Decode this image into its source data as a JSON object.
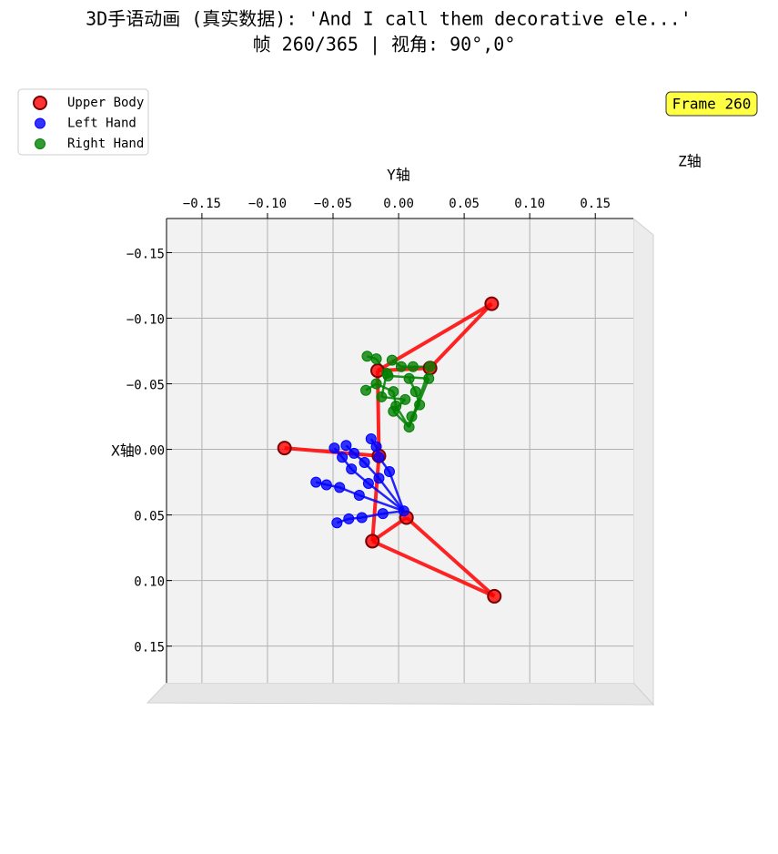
{
  "chart_data": {
    "type": "scatter",
    "title": "3D手语动画 (真实数据): 'And I call them decorative ele...'",
    "subtitle": "帧 260/365 | 视角: 90°,0°",
    "badge": "Frame 260",
    "xlabel": "Y轴",
    "ylabel": "X轴",
    "zlabel": "Z轴",
    "xlim": [
      -0.177,
      0.179
    ],
    "ylim": [
      -0.176,
      0.178
    ],
    "y_inverted": true,
    "grid": true,
    "legend": "upper left",
    "xticks": [
      {
        "value": -0.15,
        "label": "−0.15"
      },
      {
        "value": -0.1,
        "label": "−0.10"
      },
      {
        "value": -0.05,
        "label": "−0.05"
      },
      {
        "value": 0,
        "label": "0.00"
      },
      {
        "value": 0.05,
        "label": "0.05"
      },
      {
        "value": 0.1,
        "label": "0.10"
      },
      {
        "value": 0.15,
        "label": "0.15"
      }
    ],
    "yticks": [
      {
        "value": -0.15,
        "label": "−0.15"
      },
      {
        "value": -0.1,
        "label": "−0.10"
      },
      {
        "value": -0.05,
        "label": "−0.05"
      },
      {
        "value": 0,
        "label": "0.00"
      },
      {
        "value": 0.05,
        "label": "0.05"
      },
      {
        "value": 0.1,
        "label": "0.10"
      },
      {
        "value": 0.15,
        "label": "0.15"
      }
    ],
    "series": [
      {
        "name": "Upper Body",
        "color": "#ff0000",
        "x": [
          0.071,
          -0.016,
          0.024,
          -0.087,
          -0.015,
          0.006,
          -0.02,
          0.073
        ],
        "values": [
          -0.111,
          -0.06,
          -0.062,
          -0.001,
          0.005,
          0.052,
          0.07,
          0.112
        ]
      },
      {
        "name": "Left Hand",
        "color": "#0000ff",
        "x": [
          0.004,
          -0.012,
          -0.028,
          -0.038,
          -0.047,
          -0.03,
          -0.045,
          -0.055,
          -0.063,
          -0.023,
          -0.036,
          -0.043,
          -0.049,
          -0.015,
          -0.026,
          -0.034,
          -0.04,
          -0.007,
          -0.015,
          -0.017,
          -0.021
        ],
        "values": [
          0.047,
          0.049,
          0.052,
          0.053,
          0.056,
          0.035,
          0.029,
          0.027,
          0.025,
          0.026,
          0.015,
          0.006,
          -0.001,
          0.022,
          0.01,
          0.003,
          -0.003,
          0.017,
          0.006,
          -0.002,
          -0.008
        ]
      },
      {
        "name": "Right Hand",
        "color": "#008000",
        "x": [
          0.008,
          0.01,
          0.016,
          0.013,
          0.008,
          -0.002,
          -0.004,
          -0.017,
          -0.025,
          0.024,
          0.011,
          0.002,
          -0.005,
          0.023,
          -0.008,
          -0.017,
          -0.024,
          -0.004,
          0.005,
          -0.013,
          -0.009
        ],
        "values": [
          -0.017,
          -0.025,
          -0.034,
          -0.044,
          -0.054,
          -0.033,
          -0.044,
          -0.05,
          -0.045,
          -0.063,
          -0.063,
          -0.063,
          -0.068,
          -0.054,
          -0.056,
          -0.069,
          -0.071,
          -0.029,
          -0.038,
          -0.04,
          -0.058
        ]
      }
    ]
  }
}
